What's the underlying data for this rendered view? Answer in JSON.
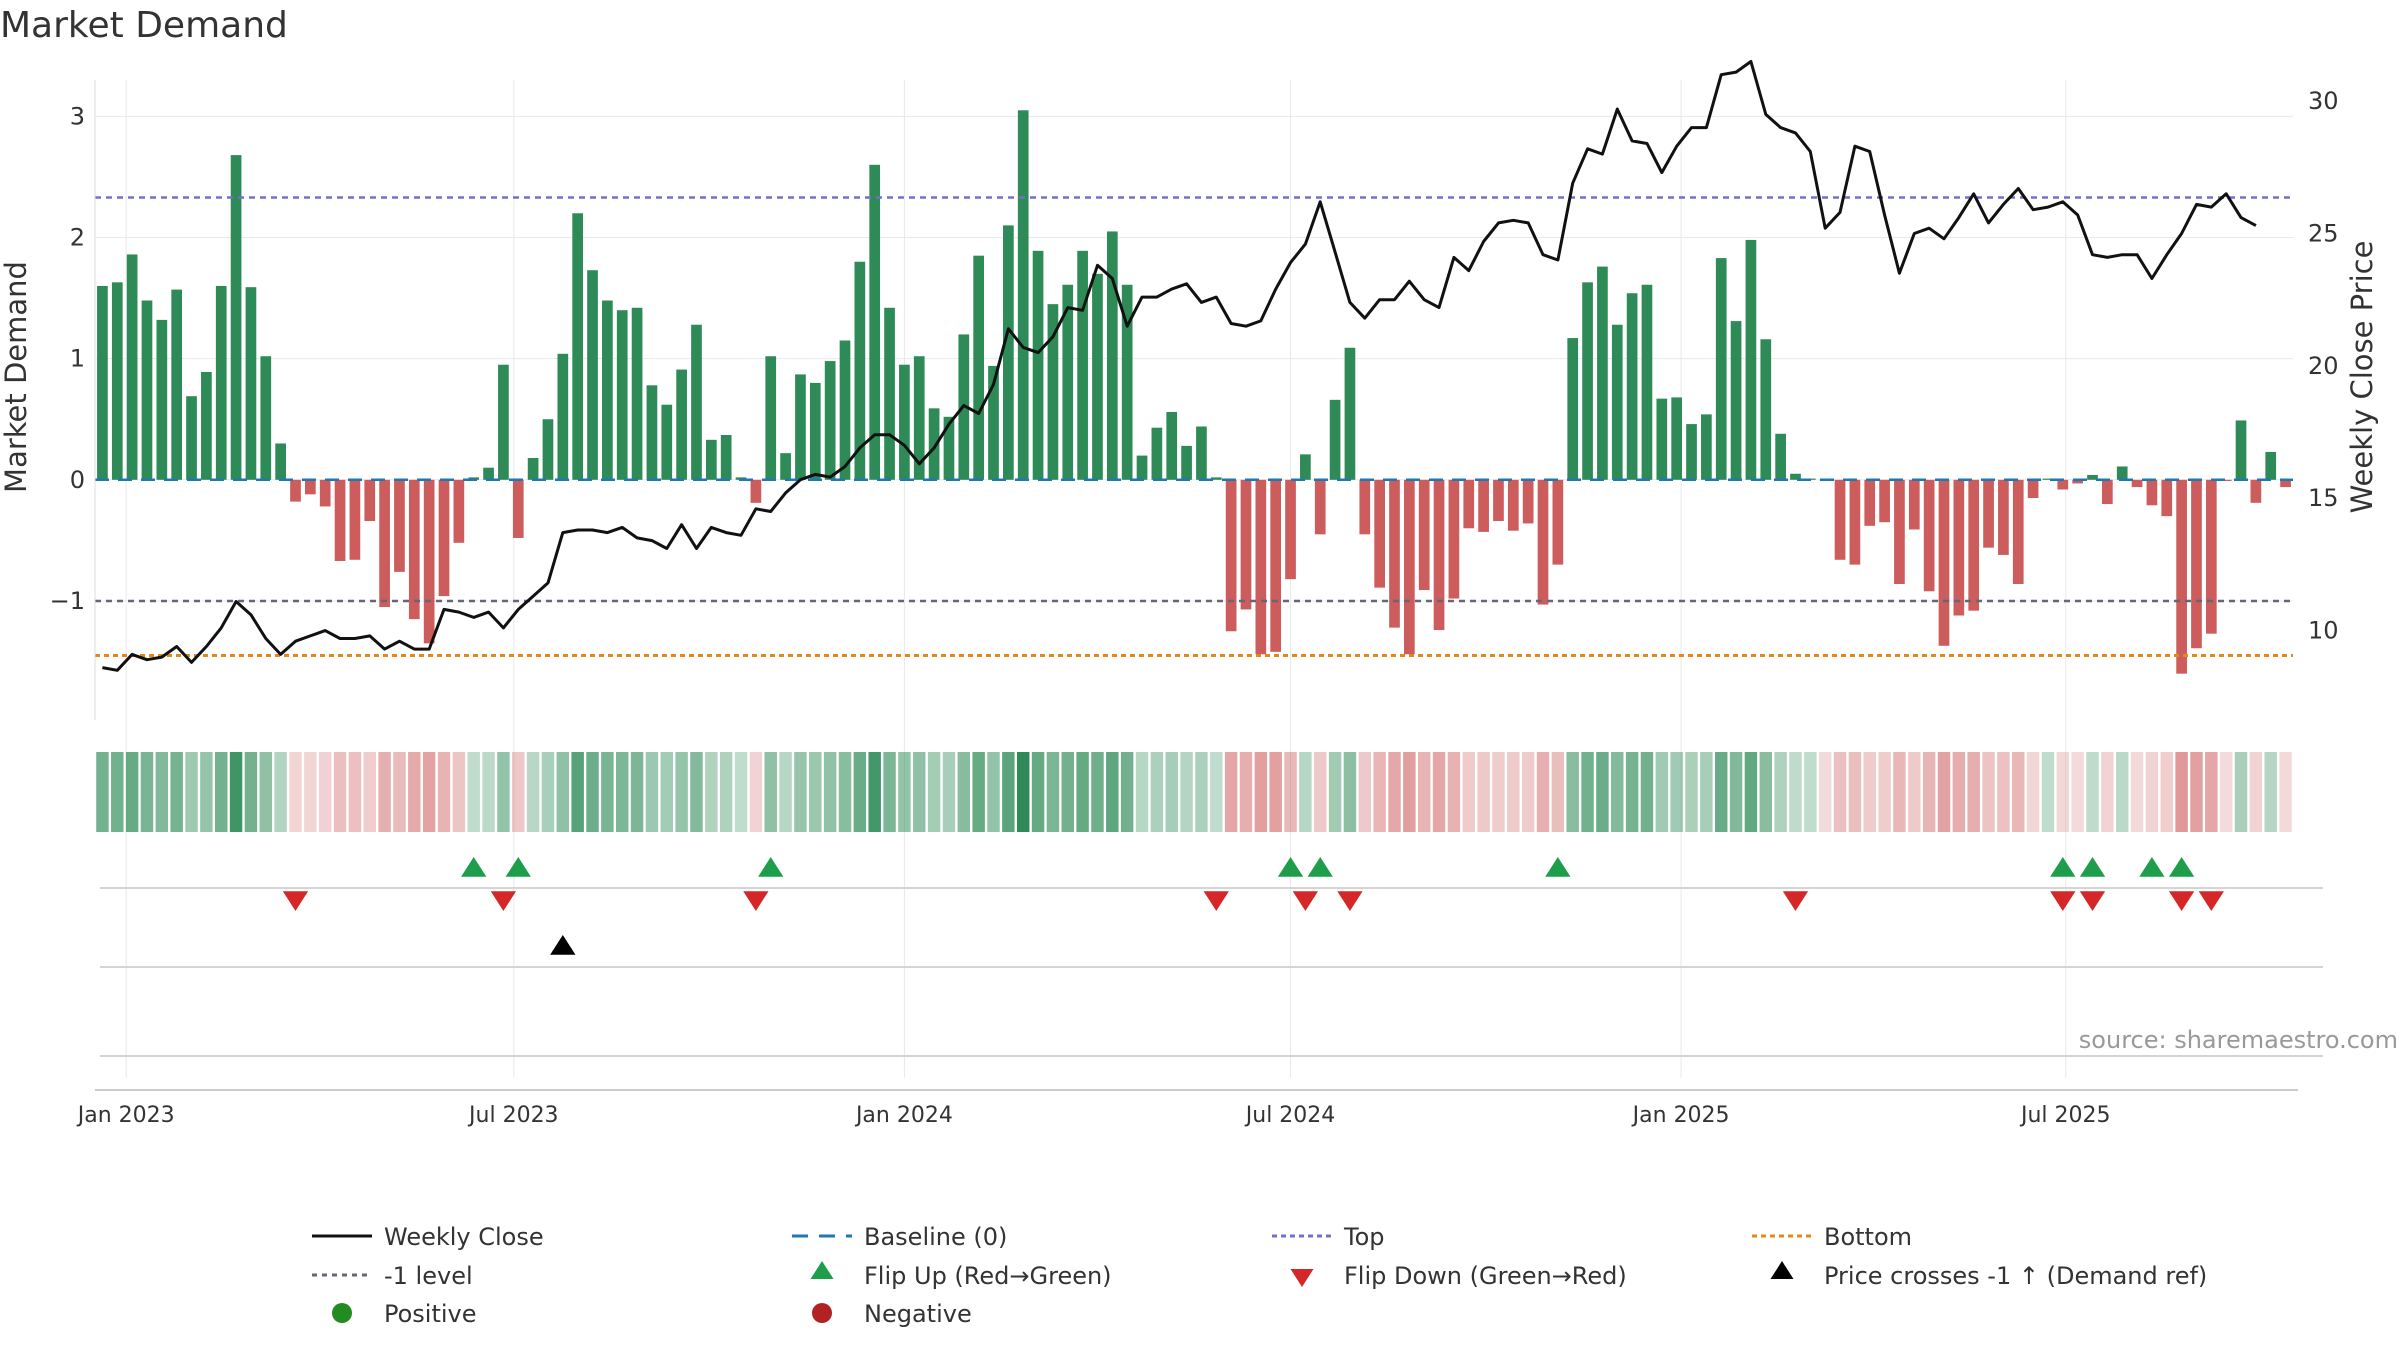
{
  "chart_data": {
    "type": "bar",
    "title": "Market Demand",
    "ylabel": "Market Demand",
    "y2label": "Weekly Close Price",
    "source": "source: sharemaestro.com",
    "ylim": [
      -1.9,
      3.3
    ],
    "y2lim": [
      7,
      30.8
    ],
    "yticks": [
      {
        "value": 3,
        "label": "3"
      },
      {
        "value": 2,
        "label": "2"
      },
      {
        "value": 1,
        "label": "1"
      },
      {
        "value": 0,
        "label": "0"
      },
      {
        "value": -1,
        "label": "−1"
      }
    ],
    "y2ticks": [
      {
        "value": 30,
        "label": "30"
      },
      {
        "value": 25,
        "label": "25"
      },
      {
        "value": 20,
        "label": "20"
      },
      {
        "value": 15,
        "label": "15"
      },
      {
        "value": 10,
        "label": "10"
      }
    ],
    "xticks": [
      {
        "index": 1.6,
        "label": "Jan 2023"
      },
      {
        "index": 27.7,
        "label": "Jul 2023"
      },
      {
        "index": 54,
        "label": "Jan 2024"
      },
      {
        "index": 80,
        "label": "Jul 2024"
      },
      {
        "index": 106.3,
        "label": "Jan 2025"
      },
      {
        "index": 132.2,
        "label": "Jul 2025"
      }
    ],
    "levels": {
      "top": 2.33,
      "minus_one": -1.0,
      "bottom": -1.45,
      "baseline": 0
    },
    "demand": [
      1.6,
      1.63,
      1.86,
      1.48,
      1.32,
      1.57,
      0.69,
      0.89,
      1.6,
      2.68,
      1.59,
      1.02,
      0.3,
      -0.18,
      -0.12,
      -0.22,
      -0.67,
      -0.66,
      -0.34,
      -1.05,
      -0.76,
      -1.15,
      -1.35,
      -0.96,
      -0.52,
      0.02,
      0.1,
      0.95,
      -0.48,
      0.18,
      0.5,
      1.04,
      2.2,
      1.73,
      1.48,
      1.4,
      1.42,
      0.78,
      0.62,
      0.91,
      1.28,
      0.33,
      0.37,
      0.02,
      -0.19,
      1.02,
      0.22,
      0.87,
      0.8,
      0.98,
      1.15,
      1.8,
      2.6,
      1.42,
      0.95,
      1.02,
      0.59,
      0.52,
      1.2,
      1.85,
      0.94,
      2.1,
      3.05,
      1.89,
      1.45,
      1.61,
      1.89,
      1.7,
      2.05,
      1.61,
      0.2,
      0.43,
      0.56,
      0.28,
      0.44,
      0.02,
      -1.25,
      -1.07,
      -1.44,
      -1.42,
      -0.82,
      0.21,
      -0.45,
      0.66,
      1.09,
      -0.45,
      -0.89,
      -1.22,
      -1.44,
      -0.91,
      -1.24,
      -0.98,
      -0.4,
      -0.43,
      -0.34,
      -0.42,
      -0.36,
      -1.03,
      -0.7,
      1.17,
      1.63,
      1.76,
      1.28,
      1.54,
      1.61,
      0.67,
      0.68,
      0.46,
      0.54,
      1.83,
      1.31,
      1.98,
      1.16,
      0.38,
      0.05,
      0.01,
      -0.01,
      -0.66,
      -0.7,
      -0.38,
      -0.35,
      -0.86,
      -0.41,
      -0.92,
      -1.37,
      -1.12,
      -1.08,
      -0.56,
      -0.62,
      -0.86,
      -0.15,
      0.01,
      -0.08,
      -0.03,
      0.04,
      -0.2,
      0.11,
      -0.06,
      -0.21,
      -0.3,
      -1.6,
      -1.39,
      -1.27,
      -0.01,
      0.49,
      -0.19,
      0.23,
      -0.06
    ],
    "price": [
      8.6,
      8.5,
      9.1,
      8.9,
      9,
      9.4,
      8.8,
      9.4,
      10.1,
      11.1,
      10.6,
      9.7,
      9.1,
      9.6,
      9.8,
      10,
      9.7,
      9.7,
      9.8,
      9.3,
      9.6,
      9.3,
      9.3,
      10.8,
      10.7,
      10.5,
      10.7,
      10.1,
      10.8,
      11.3,
      11.8,
      13.7,
      13.8,
      13.8,
      13.7,
      13.9,
      13.5,
      13.4,
      13.1,
      14,
      13.1,
      13.9,
      13.7,
      13.6,
      14.6,
      14.5,
      15.2,
      15.7,
      15.9,
      15.8,
      16.2,
      16.9,
      17.4,
      17.4,
      17,
      16.3,
      16.9,
      17.8,
      18.5,
      18.2,
      19.3,
      21.4,
      20.7,
      20.5,
      21.1,
      22.2,
      22.1,
      23.8,
      23.3,
      21.5,
      22.6,
      22.6,
      22.9,
      23.1,
      22.4,
      22.6,
      21.6,
      21.5,
      21.7,
      22.9,
      23.9,
      24.6,
      26.2,
      24.3,
      22.4,
      21.8,
      22.5,
      22.5,
      23.2,
      22.5,
      22.2,
      24.1,
      23.6,
      24.7,
      25.4,
      25.5,
      25.4,
      24.2,
      24,
      26.9,
      28.2,
      28,
      29.7,
      28.5,
      28.4,
      27.3,
      28.3,
      29,
      29,
      31,
      31.1,
      31.5,
      29.5,
      29,
      28.8,
      28.1,
      25.2,
      25.8,
      28.3,
      28.1,
      25.7,
      23.5,
      25,
      25.2,
      24.8,
      25.6,
      26.5,
      25.4,
      26.1,
      26.7,
      25.9,
      26,
      26.2,
      25.7,
      24.2,
      24.1,
      24.2,
      24.2,
      23.3,
      24.2,
      25,
      26.1,
      26,
      26.5,
      25.6,
      25.3
    ],
    "flip_up": [
      25,
      28,
      45,
      80,
      82,
      98,
      132,
      134,
      138,
      140
    ],
    "flip_down": [
      13,
      27,
      44,
      75,
      81,
      84,
      114,
      132,
      134,
      140,
      142
    ],
    "price_cross": [
      31
    ],
    "legend": [
      {
        "key": "weekly-close",
        "label": "Weekly Close"
      },
      {
        "key": "baseline",
        "label": "Baseline (0)"
      },
      {
        "key": "top",
        "label": "Top"
      },
      {
        "key": "bottom",
        "label": "Bottom"
      },
      {
        "key": "minus-one",
        "label": "-1 level"
      },
      {
        "key": "flip-up",
        "label": "Flip Up (Red→Green)"
      },
      {
        "key": "flip-down",
        "label": "Flip Down (Green→Red)"
      },
      {
        "key": "price-cross",
        "label": "Price crosses -1 ↑ (Demand ref)"
      },
      {
        "key": "positive",
        "label": "Positive"
      },
      {
        "key": "negative",
        "label": "Negative"
      }
    ],
    "colors": {
      "positive": "#2e8b57",
      "negative": "#cd5c5c",
      "price": "#111111",
      "baseline": "#1f77b4",
      "top": "#7070c8",
      "minus_one": "#666677",
      "bottom": "#e08a1a",
      "flip_up": "#1e9e4a",
      "flip_down": "#d62728",
      "cross": "#000000",
      "positive_dot": "#228b22",
      "negative_dot": "#b22222"
    }
  }
}
